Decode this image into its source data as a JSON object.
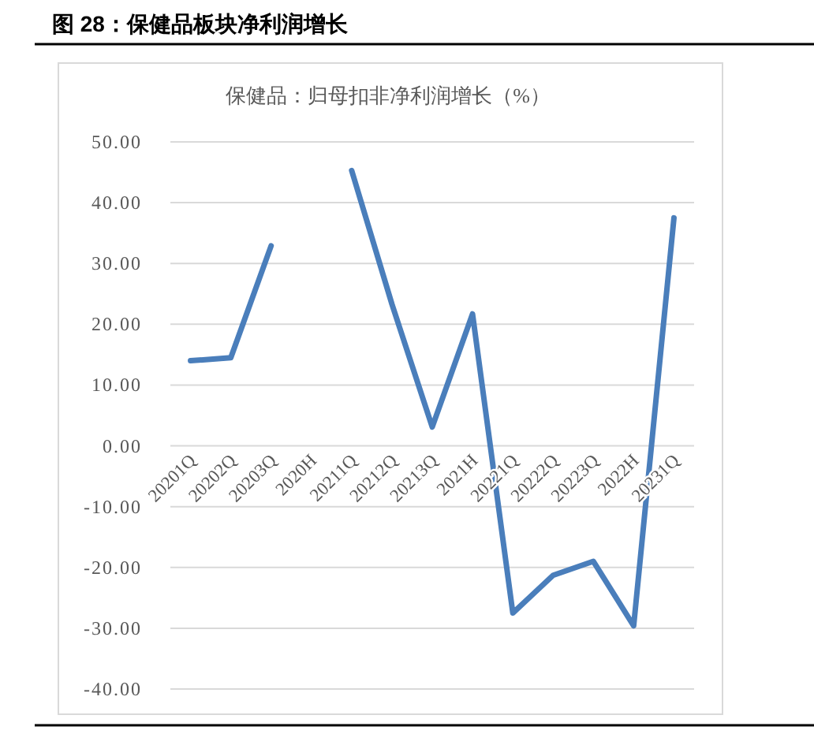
{
  "chart_data": {
    "type": "line",
    "title": "图 28：保健品板块净利润增长",
    "subtitle": "保健品：归母扣非净利润增长（%）",
    "categories": [
      "20201Q",
      "20202Q",
      "20203Q",
      "2020H",
      "20211Q",
      "20212Q",
      "20213Q",
      "2021H",
      "20221Q",
      "20222Q",
      "20223Q",
      "2022H",
      "20231Q"
    ],
    "series": [
      {
        "color": "#4a7ebb",
        "values": [
          14.0,
          14.5,
          32.9,
          null,
          45.3,
          23.3,
          3.1,
          21.7,
          -27.5,
          -21.3,
          -19.0,
          -29.6,
          37.5
        ]
      }
    ],
    "ylim": [
      -40,
      50
    ],
    "yticks": [
      {
        "value": 50,
        "label": "50.00"
      },
      {
        "value": 40,
        "label": "40.00"
      },
      {
        "value": 30,
        "label": "30.00"
      },
      {
        "value": 20,
        "label": "20.00"
      },
      {
        "value": 10,
        "label": "10.00"
      },
      {
        "value": 0,
        "label": "0.00"
      },
      {
        "value": -10,
        "label": "-10.00"
      },
      {
        "value": -20,
        "label": "-20.00"
      },
      {
        "value": -30,
        "label": "-30.00"
      },
      {
        "value": -40,
        "label": "-40.00"
      }
    ],
    "grid": "y",
    "marker": "none",
    "line_style": "solid"
  }
}
